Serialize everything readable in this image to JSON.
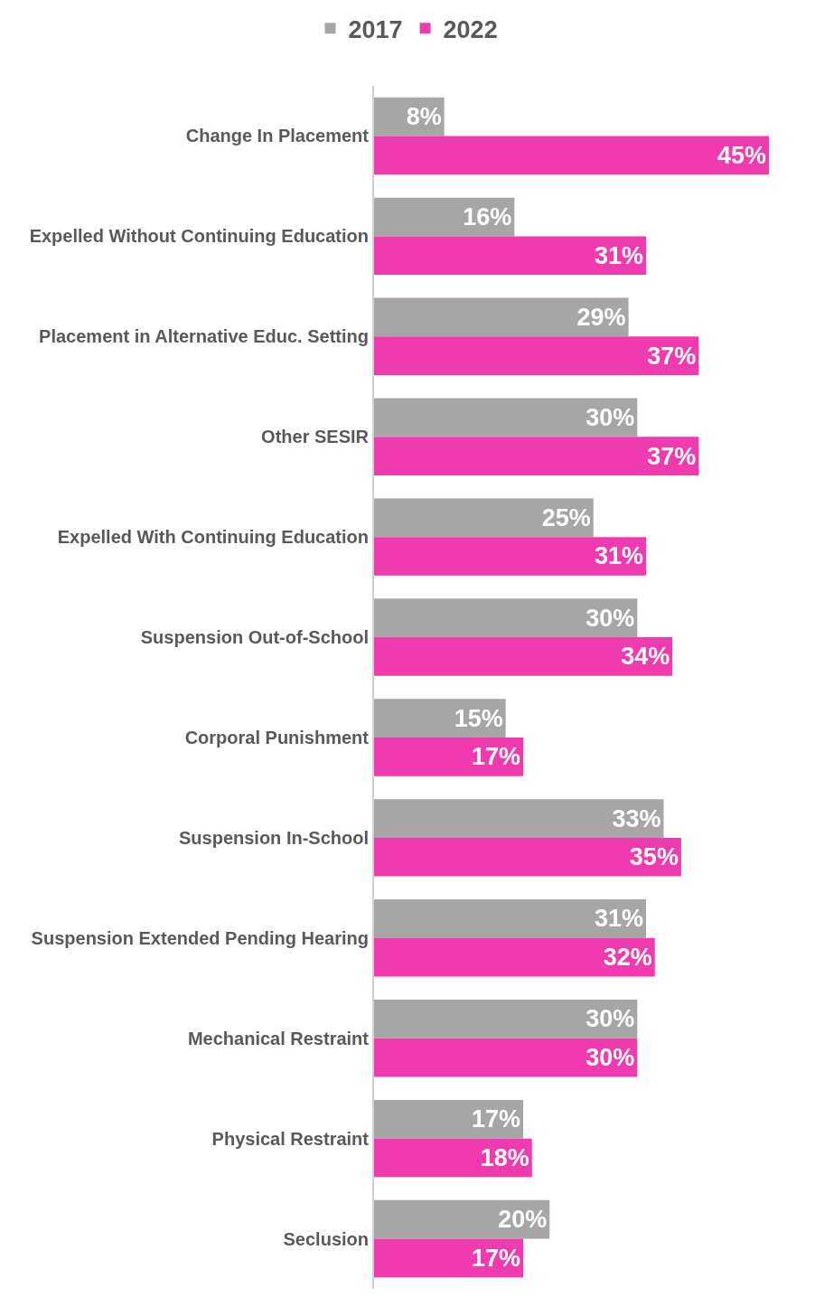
{
  "chart_data": {
    "type": "bar",
    "orientation": "horizontal",
    "legend": "top",
    "grid": false,
    "tick_labels": "y",
    "categories": [
      "Change In Placement",
      "Expelled Without Continuing Education",
      "Placement in Alternative Educ. Setting",
      "Other SESIR",
      "Expelled With Continuing Education",
      "Suspension Out-of-School",
      "Corporal Punishment",
      "Suspension In-School",
      "Suspension Extended Pending Hearing",
      "Mechanical Restraint",
      "Physical Restraint",
      "Seclusion"
    ],
    "series": [
      {
        "name": "2017",
        "color": "#a6a6a6",
        "values": [
          8,
          16,
          29,
          30,
          25,
          30,
          15,
          33,
          31,
          30,
          17,
          20
        ],
        "value_labels": [
          "8%",
          "16%",
          "29%",
          "30%",
          "25%",
          "30%",
          "15%",
          "33%",
          "31%",
          "30%",
          "17%",
          "20%"
        ]
      },
      {
        "name": "2022",
        "color": "#f03bb0",
        "values": [
          45,
          31,
          37,
          37,
          31,
          34,
          17,
          35,
          32,
          30,
          18,
          17
        ],
        "value_labels": [
          "45%",
          "31%",
          "37%",
          "37%",
          "31%",
          "34%",
          "17%",
          "35%",
          "32%",
          "30%",
          "18%",
          "17%"
        ]
      }
    ]
  }
}
